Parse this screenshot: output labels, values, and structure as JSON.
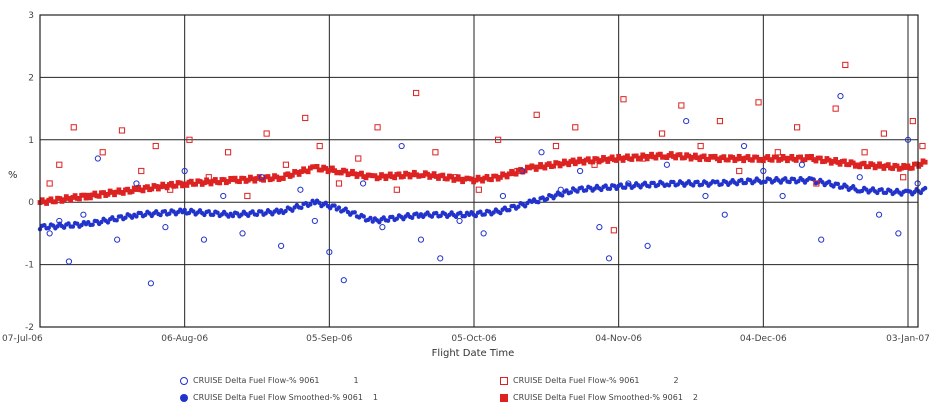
{
  "chart_data": {
    "type": "scatter",
    "title": "",
    "xlabel": "Flight Date Time",
    "ylabel": "%",
    "x_range": [
      "2006-07-07",
      "2007-01-03"
    ],
    "ylim": [
      -2,
      3
    ],
    "y_ticks": [
      -2,
      -1,
      0,
      1,
      2,
      3
    ],
    "x_ticks": [
      {
        "label": "07-Jul-06",
        "date": "2006-07-07"
      },
      {
        "label": "06-Aug-06",
        "date": "2006-08-06"
      },
      {
        "label": "05-Sep-06",
        "date": "2006-09-05"
      },
      {
        "label": "05-Oct-06",
        "date": "2006-10-05"
      },
      {
        "label": "04-Nov-06",
        "date": "2006-11-04"
      },
      {
        "label": "04-Dec-06",
        "date": "2006-12-04"
      },
      {
        "label": "03-Jan-07",
        "date": "2007-01-03"
      }
    ],
    "grid": true,
    "legend_position": "bottom",
    "series": [
      {
        "name": "CRUISE Delta Fuel Flow-% 9061",
        "engine": "1",
        "color": "#2233cc",
        "marker": "open-circle",
        "points": [
          [
            "2006-07-09",
            -0.5
          ],
          [
            "2006-07-11",
            -0.3
          ],
          [
            "2006-07-13",
            -0.95
          ],
          [
            "2006-07-16",
            -0.2
          ],
          [
            "2006-07-19",
            0.7
          ],
          [
            "2006-07-23",
            -0.6
          ],
          [
            "2006-07-27",
            0.3
          ],
          [
            "2006-07-30",
            -1.3
          ],
          [
            "2006-08-02",
            -0.4
          ],
          [
            "2006-08-06",
            0.5
          ],
          [
            "2006-08-10",
            -0.6
          ],
          [
            "2006-08-14",
            0.1
          ],
          [
            "2006-08-18",
            -0.5
          ],
          [
            "2006-08-22",
            0.4
          ],
          [
            "2006-08-26",
            -0.7
          ],
          [
            "2006-08-30",
            0.2
          ],
          [
            "2006-09-02",
            -0.3
          ],
          [
            "2006-09-05",
            -0.8
          ],
          [
            "2006-09-08",
            -1.25
          ],
          [
            "2006-09-12",
            0.3
          ],
          [
            "2006-09-16",
            -0.4
          ],
          [
            "2006-09-20",
            0.9
          ],
          [
            "2006-09-24",
            -0.6
          ],
          [
            "2006-09-28",
            -0.9
          ],
          [
            "2006-10-02",
            -0.3
          ],
          [
            "2006-10-07",
            -0.5
          ],
          [
            "2006-10-11",
            0.1
          ],
          [
            "2006-10-15",
            0.5
          ],
          [
            "2006-10-19",
            0.8
          ],
          [
            "2006-10-23",
            0.2
          ],
          [
            "2006-10-27",
            0.5
          ],
          [
            "2006-10-31",
            -0.4
          ],
          [
            "2006-11-02",
            -0.9
          ],
          [
            "2006-11-06",
            0.3
          ],
          [
            "2006-11-10",
            -0.7
          ],
          [
            "2006-11-14",
            0.6
          ],
          [
            "2006-11-18",
            1.3
          ],
          [
            "2006-11-22",
            0.1
          ],
          [
            "2006-11-26",
            -0.2
          ],
          [
            "2006-11-30",
            0.9
          ],
          [
            "2006-12-04",
            0.5
          ],
          [
            "2006-12-08",
            0.1
          ],
          [
            "2006-12-12",
            0.6
          ],
          [
            "2006-12-16",
            -0.6
          ],
          [
            "2006-12-20",
            1.7
          ],
          [
            "2006-12-24",
            0.4
          ],
          [
            "2006-12-28",
            -0.2
          ],
          [
            "2007-01-01",
            -0.5
          ],
          [
            "2007-01-03",
            1.0
          ],
          [
            "2007-01-05",
            0.3
          ]
        ]
      },
      {
        "name": "CRUISE Delta Fuel Flow-% 9061",
        "engine": "2",
        "color": "#dd2222",
        "marker": "open-square",
        "points": [
          [
            "2006-07-09",
            0.3
          ],
          [
            "2006-07-11",
            0.6
          ],
          [
            "2006-07-14",
            1.2
          ],
          [
            "2006-07-17",
            0.1
          ],
          [
            "2006-07-20",
            0.8
          ],
          [
            "2006-07-24",
            1.15
          ],
          [
            "2006-07-28",
            0.5
          ],
          [
            "2006-07-31",
            0.9
          ],
          [
            "2006-08-03",
            0.2
          ],
          [
            "2006-08-07",
            1.0
          ],
          [
            "2006-08-11",
            0.4
          ],
          [
            "2006-08-15",
            0.8
          ],
          [
            "2006-08-19",
            0.1
          ],
          [
            "2006-08-23",
            1.1
          ],
          [
            "2006-08-27",
            0.6
          ],
          [
            "2006-08-31",
            1.35
          ],
          [
            "2006-09-03",
            0.9
          ],
          [
            "2006-09-07",
            0.3
          ],
          [
            "2006-09-11",
            0.7
          ],
          [
            "2006-09-15",
            1.2
          ],
          [
            "2006-09-19",
            0.2
          ],
          [
            "2006-09-23",
            1.75
          ],
          [
            "2006-09-27",
            0.8
          ],
          [
            "2006-10-01",
            0.4
          ],
          [
            "2006-10-06",
            0.2
          ],
          [
            "2006-10-10",
            1.0
          ],
          [
            "2006-10-14",
            0.5
          ],
          [
            "2006-10-18",
            1.4
          ],
          [
            "2006-10-22",
            0.9
          ],
          [
            "2006-10-26",
            1.2
          ],
          [
            "2006-10-30",
            0.6
          ],
          [
            "2006-11-03",
            -0.45
          ],
          [
            "2006-11-05",
            1.65
          ],
          [
            "2006-11-09",
            0.7
          ],
          [
            "2006-11-13",
            1.1
          ],
          [
            "2006-11-17",
            1.55
          ],
          [
            "2006-11-21",
            0.9
          ],
          [
            "2006-11-25",
            1.3
          ],
          [
            "2006-11-29",
            0.5
          ],
          [
            "2006-12-03",
            1.6
          ],
          [
            "2006-12-07",
            0.8
          ],
          [
            "2006-12-11",
            1.2
          ],
          [
            "2006-12-15",
            0.3
          ],
          [
            "2006-12-19",
            1.5
          ],
          [
            "2006-12-21",
            2.2
          ],
          [
            "2006-12-25",
            0.8
          ],
          [
            "2006-12-29",
            1.1
          ],
          [
            "2007-01-02",
            0.4
          ],
          [
            "2007-01-04",
            1.3
          ],
          [
            "2007-01-06",
            0.9
          ]
        ]
      },
      {
        "name": "CRUISE Delta Fuel Flow Smoothed-% 9061",
        "engine": "1",
        "color": "#2233cc",
        "marker": "filled-circle",
        "points": [
          [
            "2006-07-07",
            -0.4
          ],
          [
            "2006-07-17",
            -0.35
          ],
          [
            "2006-07-27",
            -0.2
          ],
          [
            "2006-08-06",
            -0.15
          ],
          [
            "2006-08-16",
            -0.2
          ],
          [
            "2006-08-26",
            -0.15
          ],
          [
            "2006-09-02",
            0.0
          ],
          [
            "2006-09-07",
            -0.1
          ],
          [
            "2006-09-14",
            -0.3
          ],
          [
            "2006-09-24",
            -0.2
          ],
          [
            "2006-10-04",
            -0.2
          ],
          [
            "2006-10-10",
            -0.15
          ],
          [
            "2006-10-17",
            0.0
          ],
          [
            "2006-10-26",
            0.2
          ],
          [
            "2006-11-04",
            0.25
          ],
          [
            "2006-11-14",
            0.3
          ],
          [
            "2006-11-24",
            0.3
          ],
          [
            "2006-12-04",
            0.35
          ],
          [
            "2006-12-14",
            0.35
          ],
          [
            "2006-12-24",
            0.2
          ],
          [
            "2007-01-03",
            0.15
          ],
          [
            "2007-01-07",
            0.2
          ]
        ]
      },
      {
        "name": "CRUISE Delta Fuel Flow Smoothed-% 9061",
        "engine": "2",
        "color": "#dd2222",
        "marker": "filled-square",
        "points": [
          [
            "2006-07-07",
            0.0
          ],
          [
            "2006-07-17",
            0.1
          ],
          [
            "2006-07-27",
            0.2
          ],
          [
            "2006-08-06",
            0.3
          ],
          [
            "2006-08-16",
            0.35
          ],
          [
            "2006-08-26",
            0.4
          ],
          [
            "2006-09-02",
            0.55
          ],
          [
            "2006-09-07",
            0.5
          ],
          [
            "2006-09-14",
            0.4
          ],
          [
            "2006-09-24",
            0.45
          ],
          [
            "2006-10-04",
            0.35
          ],
          [
            "2006-10-10",
            0.4
          ],
          [
            "2006-10-17",
            0.55
          ],
          [
            "2006-10-26",
            0.65
          ],
          [
            "2006-11-04",
            0.7
          ],
          [
            "2006-11-14",
            0.75
          ],
          [
            "2006-11-24",
            0.7
          ],
          [
            "2006-12-04",
            0.7
          ],
          [
            "2006-12-14",
            0.7
          ],
          [
            "2006-12-24",
            0.6
          ],
          [
            "2007-01-03",
            0.55
          ],
          [
            "2007-01-07",
            0.65
          ]
        ]
      }
    ],
    "legend": [
      {
        "label": "CRUISE Delta Fuel Flow-% 9061",
        "engine": "1",
        "color": "#2233cc",
        "marker": "open-circle"
      },
      {
        "label": "CRUISE Delta Fuel Flow-% 9061",
        "engine": "2",
        "color": "#dd2222",
        "marker": "open-square"
      },
      {
        "label": "CRUISE Delta Fuel Flow Smoothed-% 9061",
        "engine": "1",
        "color": "#2233cc",
        "marker": "filled-circle"
      },
      {
        "label": "CRUISE Delta Fuel Flow Smoothed-% 9061",
        "engine": "2",
        "color": "#dd2222",
        "marker": "filled-square"
      }
    ]
  }
}
